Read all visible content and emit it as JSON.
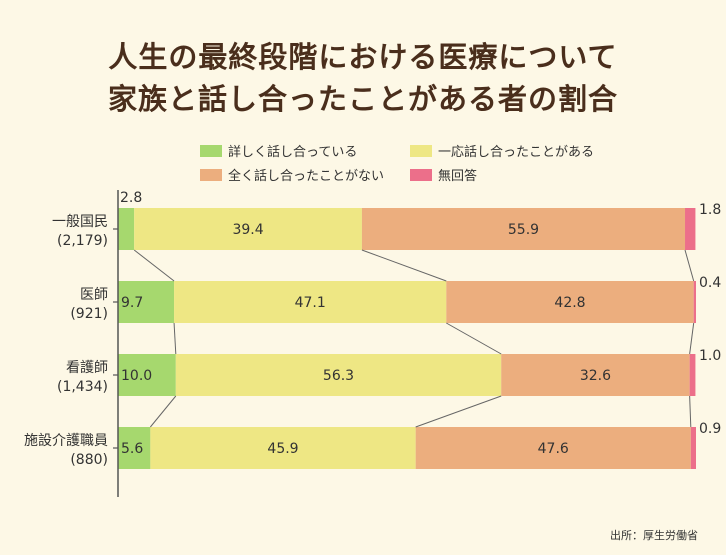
{
  "title_line_1": "人生の最終段階における医療について",
  "title_line_2": "家族と話し合ったことがある者の割合",
  "source": "出所：厚生労働省",
  "colors": {
    "background": "#fdf8e6",
    "title": "#4a2e1c",
    "axis": "#555555",
    "connector": "#666666"
  },
  "chart_data": {
    "type": "bar",
    "orientation": "horizontal",
    "stacked": true,
    "percent": true,
    "xlim": [
      0,
      100
    ],
    "legend_position": "top",
    "categories": [
      {
        "name": "一般国民",
        "n": "(2,179)"
      },
      {
        "name": "医師",
        "n": "(921)"
      },
      {
        "name": "看護師",
        "n": "(1,434)"
      },
      {
        "name": "施設介護職員",
        "n": "(880)"
      }
    ],
    "series": [
      {
        "name": "詳しく話し合っている",
        "color": "#a6d86e",
        "values": [
          2.8,
          9.7,
          10.0,
          5.6
        ]
      },
      {
        "name": "一応話し合ったことがある",
        "color": "#eee784",
        "values": [
          39.4,
          47.1,
          56.3,
          45.9
        ]
      },
      {
        "name": "全く話し合ったことがない",
        "color": "#ecae7e",
        "values": [
          55.9,
          42.8,
          32.6,
          47.6
        ]
      },
      {
        "name": "無回答",
        "color": "#ec6f8a",
        "values": [
          1.8,
          0.4,
          1.0,
          0.9
        ]
      }
    ],
    "value_labels": [
      [
        "2.8",
        "39.4",
        "55.9",
        "1.8"
      ],
      [
        "9.7",
        "47.1",
        "42.8",
        "0.4"
      ],
      [
        "10.0",
        "56.3",
        "32.6",
        "1.0"
      ],
      [
        "5.6",
        "45.9",
        "47.6",
        "0.9"
      ]
    ]
  }
}
